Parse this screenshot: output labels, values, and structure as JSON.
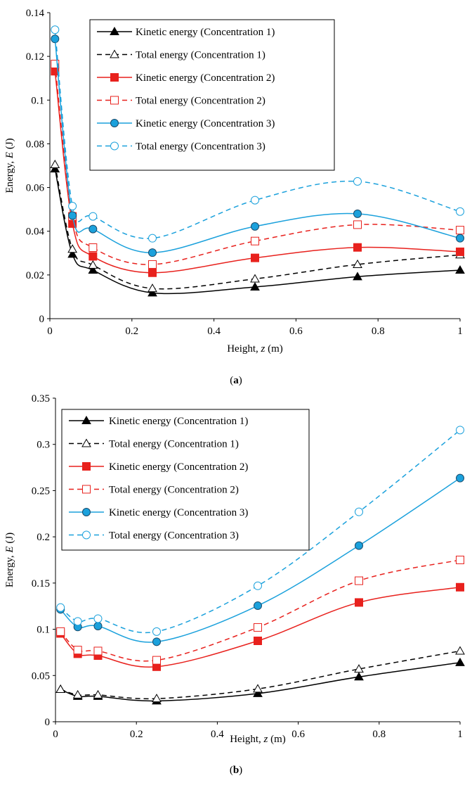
{
  "chart_data": [
    {
      "id": "a",
      "type": "line",
      "caption": "(a)",
      "caption_letter": "a",
      "xlabel": "Height, z (m)",
      "xlabel_parts": [
        "Height, ",
        "z",
        " (m)"
      ],
      "ylabel": "Energy, E (J)",
      "ylabel_parts": [
        "Energy, ",
        "E",
        " (J)"
      ],
      "xlim": [
        0,
        1
      ],
      "ylim": [
        0,
        0.14
      ],
      "xticks": [
        0,
        0.2,
        0.4,
        0.6,
        0.8,
        1
      ],
      "xtick_labels": [
        "0",
        "0.2",
        "0.4",
        "0.6",
        "0.8",
        "1"
      ],
      "yticks": [
        0,
        0.02,
        0.04,
        0.06,
        0.08,
        0.1,
        0.12,
        0.14
      ],
      "ytick_labels": [
        "0",
        "0.02",
        "0.04",
        "0.06",
        "0.08",
        "0.1",
        "0.12",
        "0.14"
      ],
      "grid": false,
      "legend_position": "top-center",
      "x": [
        0.0125,
        0.055,
        0.105,
        0.25,
        0.5,
        0.75,
        1.0
      ],
      "series": [
        {
          "name": "Kinetic energy (Concentration 1)",
          "color": "#000000",
          "dash": "solid",
          "marker": "triangle",
          "filled": true,
          "values": [
            0.0685,
            0.0295,
            0.0222,
            0.0118,
            0.0145,
            0.0192,
            0.0222
          ]
        },
        {
          "name": "Total energy (Concentration 1)",
          "color": "#000000",
          "dash": "dashed",
          "marker": "triangle",
          "filled": false,
          "values": [
            0.0705,
            0.0318,
            0.0245,
            0.0138,
            0.0182,
            0.0248,
            0.0292
          ]
        },
        {
          "name": "Kinetic energy (Concentration 2)",
          "color": "#e8211d",
          "dash": "solid",
          "marker": "square",
          "filled": true,
          "values": [
            0.1132,
            0.0435,
            0.0285,
            0.021,
            0.0278,
            0.0326,
            0.0306
          ]
        },
        {
          "name": "Total energy (Concentration 2)",
          "color": "#e8211d",
          "dash": "dashed",
          "marker": "square",
          "filled": false,
          "values": [
            0.1165,
            0.0468,
            0.0325,
            0.0248,
            0.0355,
            0.043,
            0.0405
          ]
        },
        {
          "name": "Kinetic energy (Concentration 3)",
          "color": "#1ba1dc",
          "dash": "solid",
          "marker": "circle",
          "filled": true,
          "values": [
            0.128,
            0.0472,
            0.041,
            0.0302,
            0.0422,
            0.048,
            0.0368
          ]
        },
        {
          "name": "Total energy (Concentration 3)",
          "color": "#1ba1dc",
          "dash": "dashed",
          "marker": "circle",
          "filled": false,
          "values": [
            0.1322,
            0.0515,
            0.0468,
            0.0368,
            0.0542,
            0.0628,
            0.049
          ]
        }
      ]
    },
    {
      "id": "b",
      "type": "line",
      "caption": "(b)",
      "caption_letter": "b",
      "xlabel": "Height, z (m)",
      "xlabel_parts": [
        "Height, ",
        "z",
        " (m)"
      ],
      "ylabel": "Energy, E (J)",
      "ylabel_parts": [
        "Energy, ",
        "E",
        " (J)"
      ],
      "xlim": [
        0,
        1
      ],
      "ylim": [
        0,
        0.35
      ],
      "xticks": [
        0,
        0.2,
        0.4,
        0.6,
        0.8,
        1
      ],
      "xtick_labels": [
        "0",
        "0.2",
        "0.4",
        "0.6",
        "0.8",
        "1"
      ],
      "yticks": [
        0,
        0.05,
        0.1,
        0.15,
        0.2,
        0.25,
        0.3,
        0.35
      ],
      "ytick_labels": [
        "0",
        "0.05",
        "0.1",
        "0.15",
        "0.2",
        "0.25",
        "0.3",
        "0.35"
      ],
      "grid": false,
      "legend_position": "top-left",
      "x": [
        0.0125,
        0.055,
        0.105,
        0.25,
        0.5,
        0.75,
        1.0
      ],
      "series": [
        {
          "name": "Kinetic energy (Concentration 1)",
          "color": "#000000",
          "dash": "solid",
          "marker": "triangle",
          "filled": true,
          "values": [
            0.035,
            0.0275,
            0.0275,
            0.0225,
            0.0305,
            0.0485,
            0.064
          ]
        },
        {
          "name": "Total energy (Concentration 1)",
          "color": "#000000",
          "dash": "dashed",
          "marker": "triangle",
          "filled": false,
          "values": [
            0.035,
            0.029,
            0.029,
            0.025,
            0.0355,
            0.057,
            0.0765
          ]
        },
        {
          "name": "Kinetic energy (Concentration 2)",
          "color": "#e8211d",
          "dash": "solid",
          "marker": "square",
          "filled": true,
          "values": [
            0.0955,
            0.0735,
            0.0715,
            0.0595,
            0.0875,
            0.129,
            0.1455
          ]
        },
        {
          "name": "Total energy (Concentration 2)",
          "color": "#e8211d",
          "dash": "dashed",
          "marker": "square",
          "filled": false,
          "values": [
            0.0975,
            0.0775,
            0.0765,
            0.0665,
            0.102,
            0.1525,
            0.175
          ]
        },
        {
          "name": "Kinetic energy (Concentration 3)",
          "color": "#1ba1dc",
          "dash": "solid",
          "marker": "circle",
          "filled": true,
          "values": [
            0.1215,
            0.1025,
            0.1035,
            0.0865,
            0.1255,
            0.1905,
            0.2635
          ]
        },
        {
          "name": "Total energy (Concentration 3)",
          "color": "#1ba1dc",
          "dash": "dashed",
          "marker": "circle",
          "filled": false,
          "values": [
            0.1235,
            0.1085,
            0.1115,
            0.0975,
            0.147,
            0.227,
            0.3155
          ]
        }
      ]
    }
  ]
}
